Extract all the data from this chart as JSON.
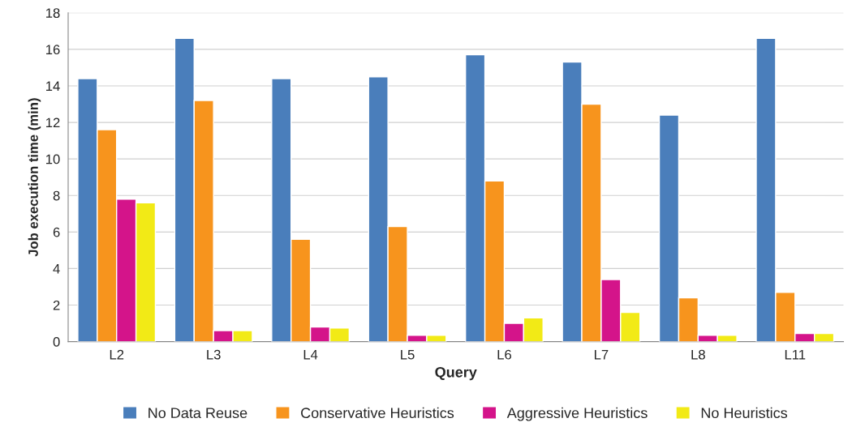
{
  "chart_data": {
    "type": "bar",
    "xlabel": "Query",
    "ylabel": "Job execution time (min)",
    "categories": [
      "L2",
      "L3",
      "L4",
      "L5",
      "L6",
      "L7",
      "L8",
      "L11"
    ],
    "series": [
      {
        "name": "No Data Reuse",
        "color": "#4a7ebb",
        "values": [
          14.4,
          16.6,
          14.4,
          14.5,
          15.7,
          15.3,
          12.4,
          16.6
        ]
      },
      {
        "name": "Conservative Heuristics",
        "color": "#f7941d",
        "values": [
          11.6,
          13.2,
          5.6,
          6.3,
          8.8,
          13.0,
          2.4,
          2.7
        ]
      },
      {
        "name": "Aggressive Heuristics",
        "color": "#d4148a",
        "values": [
          7.8,
          0.6,
          0.8,
          0.35,
          1.0,
          3.4,
          0.35,
          0.45
        ]
      },
      {
        "name": "No Heuristics",
        "color": "#f2ea16",
        "values": [
          7.6,
          0.6,
          0.75,
          0.35,
          1.3,
          1.6,
          0.35,
          0.45
        ]
      }
    ],
    "ylim": [
      0,
      18
    ],
    "yticks": [
      0,
      2,
      4,
      6,
      8,
      10,
      12,
      14,
      16,
      18
    ],
    "grid": "y",
    "legend": "bottom"
  }
}
